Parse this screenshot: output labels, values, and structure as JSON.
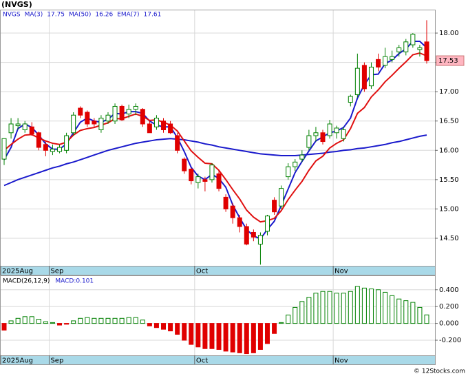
{
  "header": {
    "title": "(NVGS)"
  },
  "footer": "© 12Stocks.com",
  "chart_data": [
    {
      "type": "candlestick",
      "symbol": "NVGS",
      "categories": [
        "2025Aug",
        null,
        null,
        null,
        null,
        null,
        null,
        "Sep",
        null,
        null,
        null,
        null,
        null,
        null,
        null,
        null,
        null,
        null,
        null,
        null,
        null,
        null,
        null,
        null,
        null,
        null,
        null,
        null,
        "Oct",
        null,
        null,
        null,
        null,
        null,
        null,
        null,
        null,
        null,
        null,
        null,
        null,
        null,
        null,
        null,
        null,
        null,
        null,
        null,
        "Nov",
        null,
        null,
        null,
        null,
        null,
        null,
        null,
        null,
        null,
        null,
        null,
        null,
        null
      ],
      "open": [
        15.85,
        16.3,
        16.42,
        16.35,
        16.4,
        16.3,
        16.1,
        15.98,
        15.98,
        16.0,
        16.3,
        16.72,
        16.65,
        16.5,
        16.35,
        16.5,
        16.5,
        16.75,
        16.62,
        16.7,
        16.7,
        16.45,
        16.4,
        16.5,
        16.45,
        16.25,
        15.85,
        15.68,
        15.45,
        15.5,
        15.5,
        15.6,
        15.2,
        15.05,
        14.85,
        14.7,
        14.6,
        14.4,
        14.62,
        15.15,
        15.05,
        15.55,
        15.72,
        15.85,
        16.05,
        16.25,
        16.3,
        16.25,
        16.3,
        16.2,
        16.82,
        16.95,
        17.45,
        17.1,
        17.55,
        17.45,
        17.55,
        17.68,
        17.68,
        17.8,
        17.72,
        17.85
      ],
      "high": [
        16.2,
        16.55,
        16.55,
        16.5,
        16.48,
        16.32,
        16.15,
        16.1,
        16.1,
        16.3,
        16.65,
        16.75,
        16.68,
        16.55,
        16.6,
        16.65,
        16.8,
        16.78,
        16.78,
        16.8,
        16.72,
        16.5,
        16.6,
        16.55,
        16.5,
        16.3,
        15.88,
        15.7,
        15.6,
        15.55,
        15.78,
        15.65,
        15.25,
        15.1,
        14.9,
        14.75,
        14.65,
        14.6,
        14.9,
        15.2,
        15.4,
        15.78,
        15.85,
        16.0,
        16.35,
        16.4,
        16.35,
        16.52,
        16.42,
        16.4,
        16.95,
        17.65,
        17.5,
        17.5,
        17.65,
        17.75,
        17.7,
        17.8,
        17.9,
        18.0,
        17.8,
        18.22
      ],
      "low": [
        15.75,
        16.2,
        16.35,
        16.3,
        16.25,
        16.0,
        15.9,
        15.92,
        15.95,
        15.95,
        16.25,
        16.55,
        16.4,
        16.4,
        16.3,
        16.45,
        16.45,
        16.5,
        16.55,
        16.6,
        16.4,
        16.3,
        16.35,
        16.3,
        16.28,
        15.95,
        15.6,
        15.42,
        15.35,
        15.3,
        15.45,
        15.3,
        14.95,
        14.75,
        14.6,
        14.38,
        14.45,
        14.05,
        14.55,
        14.9,
        15.0,
        15.5,
        15.65,
        15.8,
        16.0,
        16.15,
        16.1,
        16.2,
        16.2,
        16.15,
        16.75,
        16.9,
        17.0,
        17.05,
        17.35,
        17.4,
        17.5,
        17.6,
        17.62,
        17.75,
        17.6,
        17.48
      ],
      "close": [
        16.2,
        16.45,
        16.45,
        16.45,
        16.28,
        16.05,
        16.0,
        16.02,
        16.05,
        16.25,
        16.6,
        16.6,
        16.45,
        16.45,
        16.55,
        16.6,
        16.75,
        16.52,
        16.7,
        16.75,
        16.45,
        16.3,
        16.55,
        16.35,
        16.3,
        16.0,
        15.65,
        15.48,
        15.55,
        15.47,
        15.75,
        15.35,
        15.0,
        14.85,
        14.7,
        14.4,
        14.52,
        14.55,
        14.88,
        14.95,
        15.35,
        15.72,
        15.8,
        15.92,
        16.25,
        16.3,
        16.15,
        16.45,
        16.38,
        16.35,
        16.92,
        17.4,
        17.05,
        17.42,
        17.42,
        17.6,
        17.6,
        17.75,
        17.85,
        17.98,
        17.75,
        17.53
      ],
      "up_color": "#008000",
      "down_color": "#e00000",
      "last_price_color": "#ffb6c1",
      "lines": [
        {
          "name": "MA(3)",
          "legend_value": 17.75,
          "color": "#1a1acc",
          "values": [
            15.84,
            16.05,
            16.37,
            16.45,
            16.39,
            16.26,
            16.11,
            16.02,
            16.02,
            16.11,
            16.3,
            16.48,
            16.55,
            16.5,
            16.48,
            16.53,
            16.63,
            16.62,
            16.66,
            16.66,
            16.63,
            16.5,
            16.43,
            16.4,
            16.4,
            16.22,
            15.98,
            15.71,
            15.56,
            15.5,
            15.59,
            15.52,
            15.37,
            15.07,
            14.85,
            14.65,
            14.54,
            14.49,
            14.65,
            14.79,
            15.06,
            15.34,
            15.62,
            15.81,
            15.99,
            16.16,
            16.23,
            16.3,
            16.33,
            16.39,
            16.55,
            16.89,
            17.12,
            17.29,
            17.3,
            17.48,
            17.54,
            17.65,
            17.73,
            17.86,
            17.86,
            17.75
          ]
        },
        {
          "name": "MA(50)",
          "legend_value": 16.26,
          "color": "#1a1acc",
          "values": [
            15.4,
            15.45,
            15.5,
            15.54,
            15.58,
            15.62,
            15.66,
            15.7,
            15.73,
            15.77,
            15.8,
            15.84,
            15.88,
            15.92,
            15.96,
            16.0,
            16.03,
            16.06,
            16.09,
            16.12,
            16.14,
            16.16,
            16.18,
            16.19,
            16.2,
            16.19,
            16.18,
            16.16,
            16.14,
            16.11,
            16.09,
            16.06,
            16.04,
            16.02,
            16.0,
            15.98,
            15.96,
            15.94,
            15.93,
            15.92,
            15.91,
            15.91,
            15.91,
            15.92,
            15.93,
            15.94,
            15.95,
            15.97,
            15.98,
            16.0,
            16.01,
            16.03,
            16.04,
            16.06,
            16.08,
            16.1,
            16.13,
            16.15,
            16.18,
            16.21,
            16.24,
            16.26
          ]
        },
        {
          "name": "EMA(7)",
          "legend_value": 17.61,
          "color": "#e01010",
          "values": [
            16.0,
            16.1,
            16.19,
            16.26,
            16.27,
            16.21,
            16.16,
            16.12,
            16.1,
            16.14,
            16.26,
            16.34,
            16.37,
            16.39,
            16.43,
            16.47,
            16.54,
            16.54,
            16.58,
            16.62,
            16.58,
            16.51,
            16.52,
            16.48,
            16.43,
            16.33,
            16.16,
            15.99,
            15.88,
            15.78,
            15.77,
            15.66,
            15.5,
            15.33,
            15.17,
            14.98,
            14.86,
            14.78,
            14.8,
            14.84,
            14.97,
            15.16,
            15.32,
            15.47,
            15.66,
            15.82,
            15.9,
            16.04,
            16.12,
            16.18,
            16.37,
            16.63,
            16.73,
            16.91,
            17.03,
            17.17,
            17.28,
            17.4,
            17.51,
            17.63,
            17.66,
            17.61
          ]
        }
      ],
      "ylim": [
        14.03,
        18.4
      ],
      "yticks": [
        {
          "value": 14.5,
          "label": "14.50"
        },
        {
          "value": 15,
          "label": "15.00"
        },
        {
          "value": 15.5,
          "label": "15.50"
        },
        {
          "value": 16,
          "label": "16.00"
        },
        {
          "value": 16.5,
          "label": "16.50"
        },
        {
          "value": 17,
          "label": "17.00"
        },
        {
          "value": 17.5,
          "label": "17.50"
        },
        {
          "value": 18,
          "label": "18.00"
        }
      ],
      "grid": true
    },
    {
      "type": "bar",
      "name": "MACD(26,12,9)",
      "value_text": "MACD:0.101",
      "categories": [
        "2025Aug",
        null,
        null,
        null,
        null,
        null,
        null,
        "Sep",
        null,
        null,
        null,
        null,
        null,
        null,
        null,
        null,
        null,
        null,
        null,
        null,
        null,
        null,
        null,
        null,
        null,
        null,
        null,
        null,
        "Oct",
        null,
        null,
        null,
        null,
        null,
        null,
        null,
        null,
        null,
        null,
        null,
        null,
        null,
        null,
        null,
        null,
        null,
        null,
        null,
        "Nov",
        null,
        null,
        null,
        null,
        null,
        null,
        null,
        null,
        null,
        null,
        null,
        null,
        null
      ],
      "values": [
        -0.08,
        0.03,
        0.06,
        0.08,
        0.08,
        0.05,
        0.02,
        0.01,
        -0.02,
        -0.01,
        0.03,
        0.06,
        0.07,
        0.06,
        0.06,
        0.06,
        0.06,
        0.06,
        0.07,
        0.07,
        0.04,
        -0.03,
        -0.05,
        -0.07,
        -0.09,
        -0.13,
        -0.2,
        -0.25,
        -0.28,
        -0.3,
        -0.3,
        -0.31,
        -0.33,
        -0.34,
        -0.35,
        -0.36,
        -0.35,
        -0.31,
        -0.24,
        -0.12,
        0.01,
        0.1,
        0.19,
        0.26,
        0.31,
        0.36,
        0.38,
        0.38,
        0.36,
        0.36,
        0.38,
        0.44,
        0.42,
        0.41,
        0.4,
        0.37,
        0.33,
        0.29,
        0.27,
        0.25,
        0.19,
        0.101
      ],
      "positive_color": "#008000",
      "negative_color": "#e00000",
      "ylim": [
        -0.38,
        0.57
      ],
      "yticks": [
        {
          "value": -0.2,
          "label": "-0.200"
        },
        {
          "value": 0,
          "label": "0.000"
        },
        {
          "value": 0.2,
          "label": "0.200"
        },
        {
          "value": 0.4,
          "label": "0.400"
        }
      ],
      "grid": true
    }
  ]
}
